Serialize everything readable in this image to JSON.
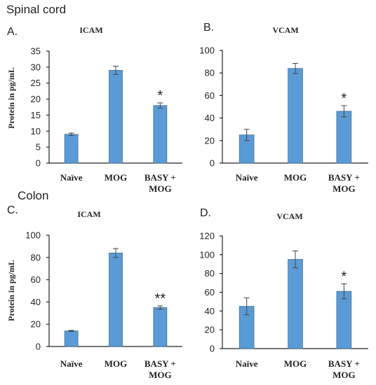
{
  "sections": [
    {
      "title": "Spinal cord"
    },
    {
      "title": "Colon"
    }
  ],
  "ylabel": "Protein in pg/mL",
  "chart_data": [
    {
      "panel": "A.",
      "type": "bar",
      "title": "ICAM",
      "categories": [
        [
          "Naïve"
        ],
        [
          "MOG"
        ],
        [
          "BASY +",
          "MOG"
        ]
      ],
      "values": [
        9,
        29,
        18
      ],
      "errors": [
        0.4,
        1.3,
        0.8
      ],
      "annotations": [
        "",
        "",
        "*"
      ],
      "ylim": [
        0,
        35
      ],
      "yticks": [
        0,
        5,
        10,
        15,
        20,
        25,
        30,
        35
      ],
      "ylabel": "Protein in pg/mL"
    },
    {
      "panel": "B.",
      "type": "bar",
      "title": "VCAM",
      "categories": [
        [
          "Naïve"
        ],
        [
          "MOG"
        ],
        [
          "BASY +",
          "MOG"
        ]
      ],
      "values": [
        25,
        84,
        46
      ],
      "errors": [
        5,
        4.5,
        5
      ],
      "annotations": [
        "",
        "",
        "*"
      ],
      "ylim": [
        0,
        100
      ],
      "yticks": [
        0,
        20,
        40,
        60,
        80,
        100
      ],
      "ylabel": ""
    },
    {
      "panel": "C.",
      "type": "bar",
      "title": "ICAM",
      "categories": [
        [
          "Naïve"
        ],
        [
          "MOG"
        ],
        [
          "BASY +",
          "MOG"
        ]
      ],
      "values": [
        14,
        84,
        35
      ],
      "errors": [
        0.5,
        4,
        1.5
      ],
      "annotations": [
        "",
        "",
        "**"
      ],
      "ylim": [
        0,
        100
      ],
      "yticks": [
        0,
        20,
        40,
        60,
        80,
        100
      ],
      "ylabel": "Protein in pg/mL"
    },
    {
      "panel": "D.",
      "type": "bar",
      "title": "VCAM",
      "categories": [
        [
          "Naïve"
        ],
        [
          "MOG"
        ],
        [
          "BASY +",
          "MOG"
        ]
      ],
      "values": [
        45,
        95,
        61
      ],
      "errors": [
        9,
        9,
        8
      ],
      "annotations": [
        "",
        "",
        "*"
      ],
      "ylim": [
        0,
        120
      ],
      "yticks": [
        0,
        20,
        40,
        60,
        80,
        100,
        120
      ],
      "ylabel": ""
    }
  ]
}
